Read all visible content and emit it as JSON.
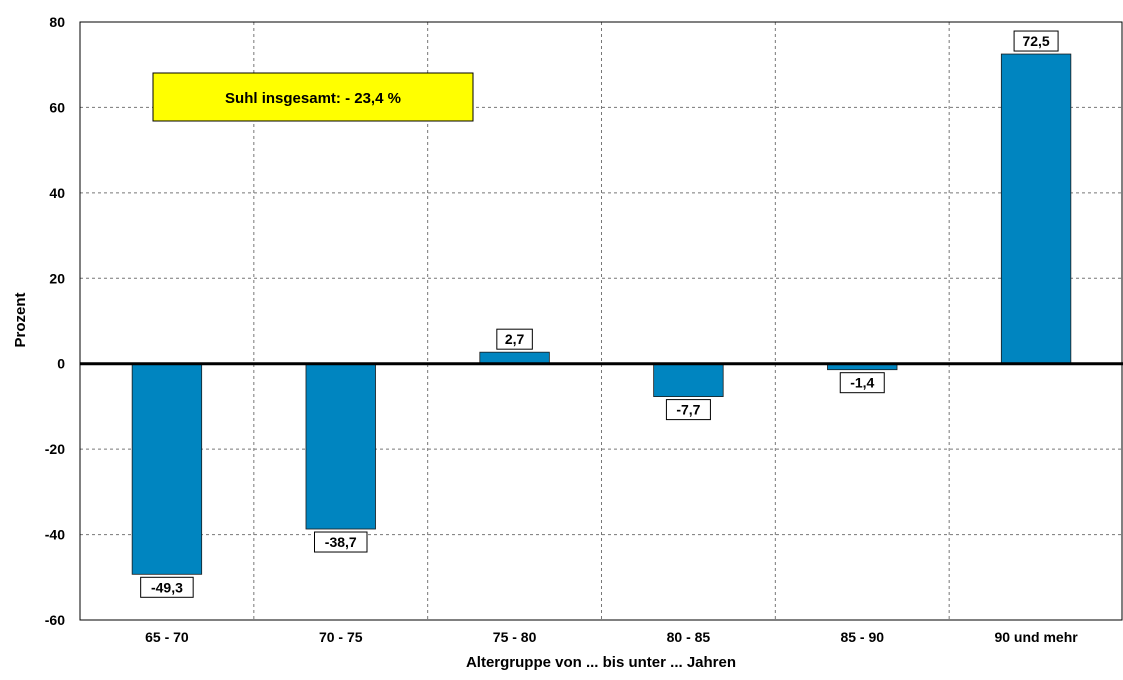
{
  "chart_data": {
    "type": "bar",
    "categories": [
      "65 - 70",
      "70 - 75",
      "75 - 80",
      "80 - 85",
      "85 - 90",
      "90 und mehr"
    ],
    "values": [
      -49.3,
      -38.7,
      2.7,
      -7.7,
      -1.4,
      72.5
    ],
    "value_labels": [
      "-49,3",
      "-38,7",
      "2,7",
      "-7,7",
      "-1,4",
      "72,5"
    ],
    "xlabel": "Altergruppe von ... bis unter ... Jahren",
    "ylabel": "Prozent",
    "ylim": [
      -60,
      80
    ],
    "yticks": [
      -60,
      -40,
      -20,
      0,
      20,
      40,
      60,
      80
    ],
    "ytick_labels": [
      "-60",
      "-40",
      "-20",
      "0",
      "20",
      "40",
      "60",
      "80"
    ],
    "grid": true,
    "bar_color": "#0085C0",
    "annotation": {
      "text": "Suhl insgesamt: - 23,4 %",
      "background": "#FFFF00"
    }
  }
}
